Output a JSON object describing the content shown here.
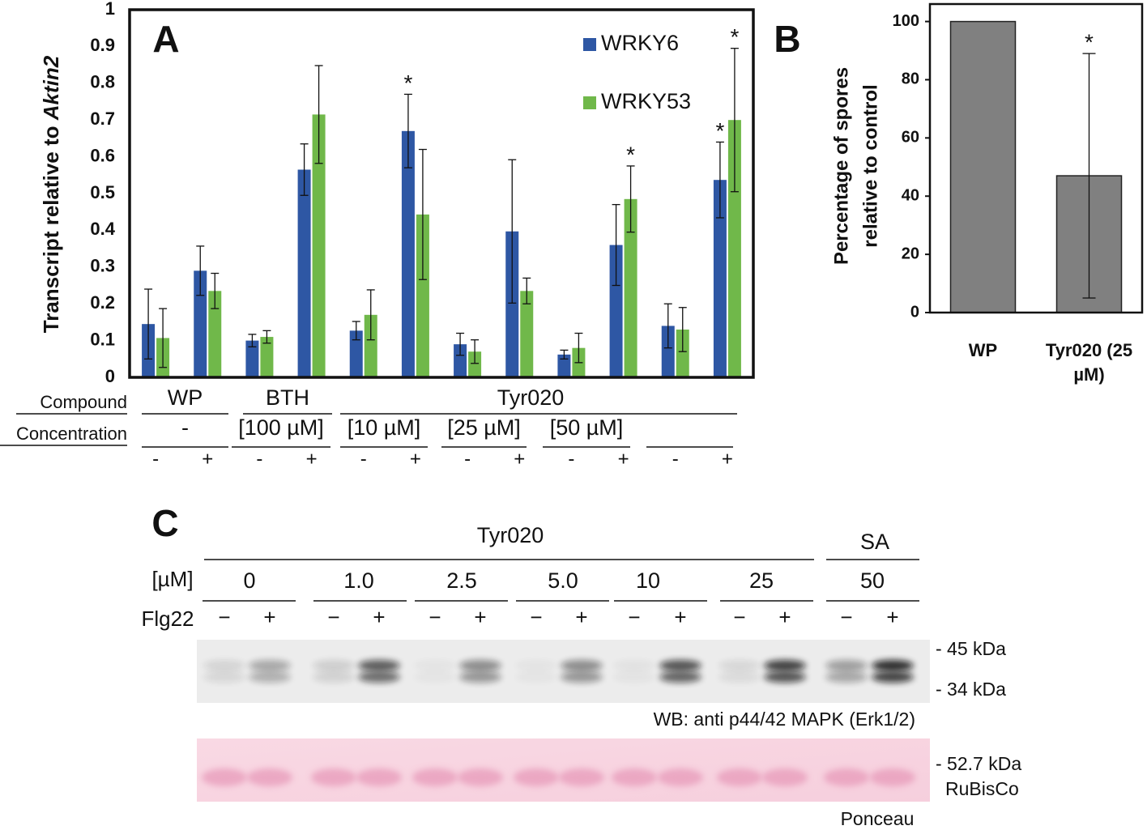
{
  "chart_data": [
    {
      "type": "bar",
      "title": "A",
      "ylabel": [
        "Transcript relative to",
        "Aktin2"
      ],
      "categories": [
        "-",
        "+",
        "-",
        "+",
        "-",
        "+",
        "-",
        "+",
        "-",
        "+",
        "-",
        "+"
      ],
      "x_groups": {
        "compound_label": "Compound",
        "compounds": [
          "WP",
          "BTH",
          "Tyr020"
        ],
        "concentration_label": "Concentration",
        "concentrations": [
          "-",
          "[100 µM]",
          "[10 µM]",
          "[25 µM]",
          "[50 µM]"
        ]
      },
      "series": [
        {
          "name": "WRKY6",
          "color": "#2e57a4",
          "values": [
            0.145,
            0.29,
            0.1,
            0.565,
            0.127,
            0.67,
            0.09,
            0.397,
            0.062,
            0.36,
            0.14,
            0.537
          ],
          "errors": [
            0.095,
            0.067,
            0.017,
            0.07,
            0.025,
            0.1,
            0.03,
            0.195,
            0.012,
            0.11,
            0.06,
            0.103
          ],
          "significance": [
            null,
            null,
            null,
            null,
            null,
            "*",
            null,
            null,
            null,
            null,
            null,
            "*"
          ]
        },
        {
          "name": "WRKY53",
          "color": "#70b84a",
          "values": [
            0.107,
            0.235,
            0.11,
            0.715,
            0.17,
            0.443,
            0.07,
            0.235,
            0.08,
            0.485,
            0.13,
            0.7
          ],
          "errors": [
            0.08,
            0.048,
            0.017,
            0.133,
            0.068,
            0.177,
            0.032,
            0.035,
            0.04,
            0.09,
            0.06,
            0.195
          ],
          "significance": [
            null,
            null,
            null,
            null,
            null,
            null,
            null,
            null,
            null,
            "*",
            null,
            "*"
          ]
        }
      ],
      "ylim": [
        0,
        1
      ],
      "yticks": [
        0,
        0.1,
        0.2,
        0.3,
        0.4,
        0.5,
        0.6,
        0.7,
        0.8,
        0.9,
        1
      ],
      "grid": false,
      "legend": "top-right"
    },
    {
      "type": "bar",
      "title": "B",
      "ylabel": [
        "Percentage of spores",
        "relative to control"
      ],
      "categories": [
        "WP",
        "Tyr020 (25 µM)"
      ],
      "values": [
        100,
        47
      ],
      "errors": [
        null,
        42
      ],
      "significance": [
        null,
        "*"
      ],
      "color": "#808080",
      "ylim": [
        0,
        106
      ],
      "yticks": [
        0,
        20,
        40,
        60,
        80,
        100
      ],
      "grid": false
    }
  ],
  "panel_c": {
    "label": "C",
    "treatment": "Tyr020",
    "control": "SA",
    "unit": "[µM]",
    "concentrations": [
      "0",
      "1.0",
      "2.5",
      "5.0",
      "10",
      "25",
      "50"
    ],
    "elicitor": "Flg22",
    "elicitor_states": [
      "−",
      "+",
      "−",
      "+",
      "−",
      "+",
      "−",
      "+",
      "−",
      "+",
      "−",
      "+",
      "−",
      "+"
    ],
    "blot_markers": [
      "- 45 kDa",
      "- 34 kDa"
    ],
    "blot_caption": "WB: anti p44/42 MAPK (Erk1/2)",
    "stain_markers": [
      "- 52.7 kDa",
      "RuBisCo"
    ],
    "stain_caption": "Ponceau"
  }
}
